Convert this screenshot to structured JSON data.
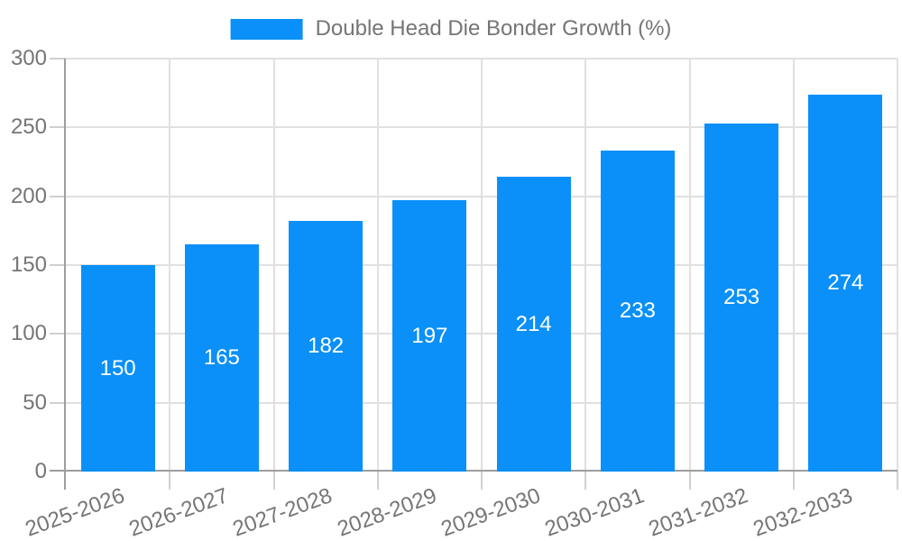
{
  "chart_data": {
    "type": "bar",
    "title": "",
    "legend": {
      "label": "Double Head Die Bonder Growth (%)",
      "position": "top-center"
    },
    "categories": [
      "2025-2026",
      "2026-2027",
      "2027-2028",
      "2028-2029",
      "2029-2030",
      "2030-2031",
      "2031-2032",
      "2032-2033"
    ],
    "values": [
      150,
      165,
      182,
      197,
      214,
      233,
      253,
      274
    ],
    "value_labels": {
      "position": "inside-center",
      "color": "#ffffff"
    },
    "xlabel": "",
    "ylabel": "",
    "ylim": [
      0,
      300
    ],
    "yticks": [
      0,
      50,
      100,
      150,
      200,
      250,
      300
    ],
    "grid": true,
    "colors": {
      "bar": "#0a90f8",
      "tick_text": "#757575",
      "legend_text": "#757575",
      "axis_line": "#9e9e9e",
      "grid_line": "#e0e0e0",
      "tick_mark": "#d0d0d0",
      "background": "#ffffff"
    }
  }
}
